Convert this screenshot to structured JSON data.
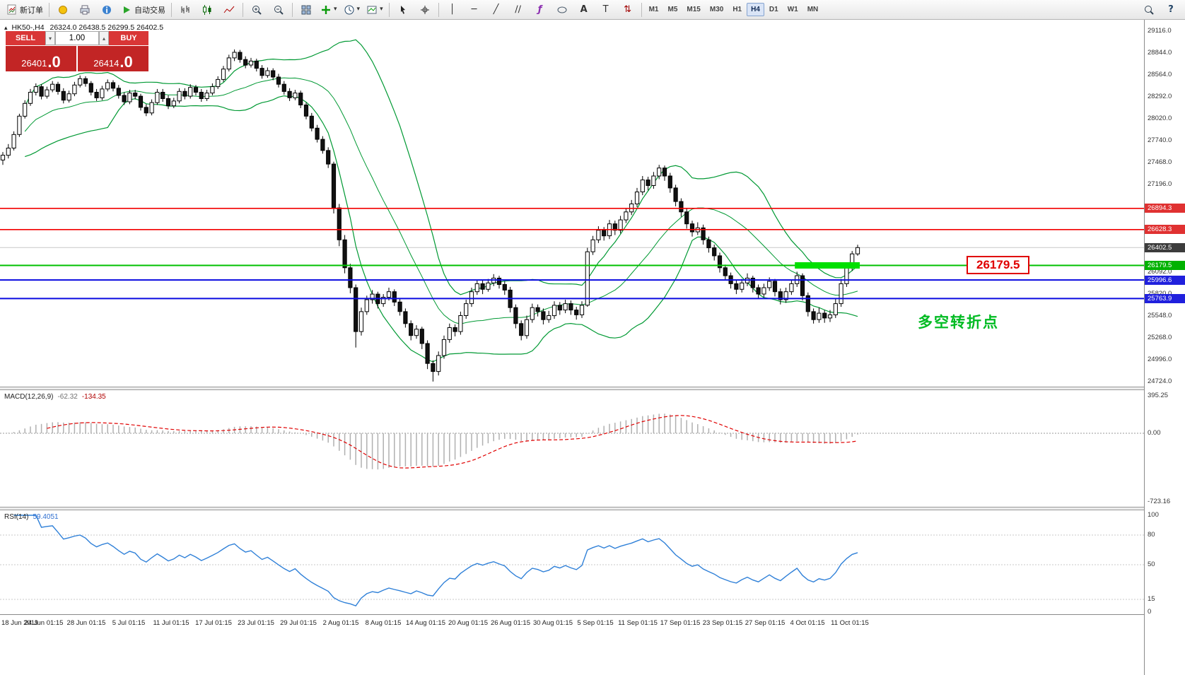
{
  "toolbar": {
    "new_order_label": "新订单",
    "autotrading_label": "自动交易",
    "timeframes": [
      "M1",
      "M5",
      "M15",
      "M30",
      "H1",
      "H4",
      "D1",
      "W1",
      "MN"
    ],
    "active_timeframe": "H4"
  },
  "icons": {
    "symbol_marker": "▴",
    "vline": "│",
    "hline": "─",
    "trendline": "╱",
    "channel": "∕∕",
    "fibo": "ƒ",
    "text": "A",
    "label": "T",
    "arrows": "⇅",
    "caret": "▾",
    "help": "?",
    "spin_up": "▴",
    "spin_down": "▾"
  },
  "header": {
    "symbol_period": "HK50-,H4",
    "ohlc": "26324.0 26438.5 26299.5 26402.5"
  },
  "trade_panel": {
    "sell_label": "SELL",
    "buy_label": "BUY",
    "volume": "1.00",
    "sell_price_main": "26401",
    "sell_price_pip": ".0",
    "buy_price_main": "26414",
    "buy_price_pip": ".0"
  },
  "macd": {
    "label": "MACD(12,26,9)",
    "value_main": "-62.32",
    "value_signal": "-134.35",
    "scale": [
      "395.25",
      "0.00",
      "-723.16"
    ]
  },
  "rsi": {
    "label": "RSI(14)",
    "value": "59.4051",
    "scale": [
      "100",
      "80",
      "50",
      "15",
      "0"
    ]
  },
  "annotations": {
    "callout_text": "26179.5",
    "turning_point_text": "多空转折点"
  },
  "chart_data": {
    "type": "candlestick",
    "symbol": "HK50-",
    "timeframe": "H4",
    "title": "HK50- H4 candlestick chart with Bollinger Bands, horizontal support/resistance lines, MACD and RSI",
    "current_bar": {
      "open": 26324.0,
      "high": 26438.5,
      "low": 26299.5,
      "close": 26402.5
    },
    "y_axis": {
      "min": 24660,
      "max": 29240
    },
    "bands_color": "#009933",
    "current_price_line_color": "#c8c8c8",
    "hlines": [
      {
        "price": 26894.3,
        "color": "#f20000",
        "w": 1.6
      },
      {
        "price": 26628.3,
        "color": "#f20000",
        "w": 1.6
      },
      {
        "price": 26179.5,
        "color": "#00c000",
        "w": 2
      },
      {
        "price": 25996.6,
        "color": "#0a0ae0",
        "w": 2
      },
      {
        "price": 25763.9,
        "color": "#0a0ae0",
        "w": 2
      }
    ],
    "highlight": {
      "price": 26179.5,
      "from": 144,
      "to": 155,
      "color": "#00e000"
    },
    "price_axis": {
      "regular": [
        {
          "text": "29116.0",
          "price": 29116.0
        },
        {
          "text": "28844.0",
          "price": 28844.0
        },
        {
          "text": "28564.0",
          "price": 28564.0
        },
        {
          "text": "28292.0",
          "price": 28292.0
        },
        {
          "text": "28020.0",
          "price": 28020.0
        },
        {
          "text": "27740.0",
          "price": 27740.0
        },
        {
          "text": "27468.0",
          "price": 27468.0
        },
        {
          "text": "27196.0",
          "price": 27196.0
        },
        {
          "text": "26092.0",
          "price": 26092.0
        },
        {
          "text": "25820.0",
          "price": 25820.0
        },
        {
          "text": "25548.0",
          "price": 25548.0
        },
        {
          "text": "25268.0",
          "price": 25268.0
        },
        {
          "text": "24996.0",
          "price": 24996.0
        },
        {
          "text": "24724.0",
          "price": 24724.0
        }
      ],
      "tags": [
        {
          "text": "26894.3",
          "price": 26894.3,
          "bg": "#e03131"
        },
        {
          "text": "26628.3",
          "price": 26628.3,
          "bg": "#e03131"
        },
        {
          "text": "26402.5",
          "price": 26402.5,
          "bg": "#3c3c3c"
        },
        {
          "text": "26179.5",
          "price": 26179.5,
          "bg": "#00b200"
        },
        {
          "text": "25996.6",
          "price": 25996.6,
          "bg": "#2020dd"
        },
        {
          "text": "25763.9",
          "price": 25763.9,
          "bg": "#2020dd"
        }
      ]
    },
    "time_labels": [
      "18 Jun 2019",
      "24 Jun 01:15",
      "28 Jun 01:15",
      "5 Jul 01:15",
      "11 Jul 01:15",
      "17 Jul 01:15",
      "23 Jul 01:15",
      "29 Jul 01:15",
      "2 Aug 01:15",
      "8 Aug 01:15",
      "14 Aug 01:15",
      "20 Aug 01:15",
      "26 Aug 01:15",
      "30 Aug 01:15",
      "5 Sep 01:15",
      "11 Sep 01:15",
      "17 Sep 01:15",
      "23 Sep 01:15",
      "27 Sep 01:15",
      "4 Oct 01:15",
      "11 Oct 01:15"
    ],
    "candles": [
      [
        27500,
        27600,
        27440,
        27560
      ],
      [
        27560,
        27700,
        27520,
        27650
      ],
      [
        27650,
        27860,
        27620,
        27820
      ],
      [
        27820,
        28080,
        27790,
        28050
      ],
      [
        28050,
        28250,
        28020,
        28210
      ],
      [
        28210,
        28390,
        28180,
        28350
      ],
      [
        28350,
        28460,
        28310,
        28420
      ],
      [
        28420,
        28450,
        28260,
        28300
      ],
      [
        28300,
        28420,
        28270,
        28380
      ],
      [
        28380,
        28490,
        28350,
        28450
      ],
      [
        28450,
        28480,
        28320,
        28360
      ],
      [
        28360,
        28400,
        28210,
        28250
      ],
      [
        28250,
        28370,
        28220,
        28330
      ],
      [
        28330,
        28480,
        28300,
        28440
      ],
      [
        28440,
        28560,
        28410,
        28520
      ],
      [
        28520,
        28550,
        28420,
        28460
      ],
      [
        28460,
        28490,
        28310,
        28350
      ],
      [
        28350,
        28390,
        28240,
        28280
      ],
      [
        28280,
        28430,
        28250,
        28390
      ],
      [
        28390,
        28510,
        28360,
        28470
      ],
      [
        28470,
        28500,
        28360,
        28400
      ],
      [
        28400,
        28440,
        28270,
        28310
      ],
      [
        28310,
        28350,
        28190,
        28230
      ],
      [
        28230,
        28380,
        28200,
        28340
      ],
      [
        28340,
        28380,
        28260,
        28300
      ],
      [
        28300,
        28330,
        28120,
        28160
      ],
      [
        28160,
        28200,
        28050,
        28090
      ],
      [
        28090,
        28260,
        28060,
        28220
      ],
      [
        28220,
        28390,
        28190,
        28350
      ],
      [
        28350,
        28390,
        28230,
        28270
      ],
      [
        28270,
        28310,
        28140,
        28180
      ],
      [
        28180,
        28280,
        28150,
        28240
      ],
      [
        28240,
        28400,
        28210,
        28360
      ],
      [
        28360,
        28400,
        28260,
        28300
      ],
      [
        28300,
        28450,
        28270,
        28410
      ],
      [
        28410,
        28440,
        28310,
        28350
      ],
      [
        28350,
        28390,
        28230,
        28270
      ],
      [
        28270,
        28380,
        28240,
        28340
      ],
      [
        28340,
        28460,
        28310,
        28420
      ],
      [
        28420,
        28550,
        28390,
        28510
      ],
      [
        28510,
        28680,
        28480,
        28640
      ],
      [
        28640,
        28820,
        28610,
        28780
      ],
      [
        28780,
        28886,
        28740,
        28850
      ],
      [
        28850,
        28880,
        28720,
        28760
      ],
      [
        28760,
        28800,
        28650,
        28690
      ],
      [
        28690,
        28780,
        28660,
        28740
      ],
      [
        28740,
        28770,
        28610,
        28650
      ],
      [
        28650,
        28690,
        28520,
        28560
      ],
      [
        28560,
        28660,
        28530,
        28620
      ],
      [
        28620,
        28650,
        28500,
        28540
      ],
      [
        28540,
        28580,
        28410,
        28450
      ],
      [
        28450,
        28490,
        28320,
        28360
      ],
      [
        28360,
        28400,
        28240,
        28280
      ],
      [
        28280,
        28380,
        28250,
        28340
      ],
      [
        28340,
        28370,
        28150,
        28190
      ],
      [
        28190,
        28220,
        28010,
        28050
      ],
      [
        28050,
        28090,
        27860,
        27900
      ],
      [
        27900,
        27940,
        27720,
        27760
      ],
      [
        27760,
        27800,
        27580,
        27620
      ],
      [
        27620,
        27660,
        27400,
        27450
      ],
      [
        27450,
        27480,
        26830,
        26900
      ],
      [
        26900,
        26950,
        26420,
        26500
      ],
      [
        26500,
        26560,
        26080,
        26150
      ],
      [
        26150,
        26200,
        25830,
        25900
      ],
      [
        25900,
        25940,
        25150,
        25350
      ],
      [
        25350,
        25650,
        25300,
        25600
      ],
      [
        25600,
        25800,
        25560,
        25750
      ],
      [
        25750,
        25870,
        25700,
        25820
      ],
      [
        25820,
        25850,
        25640,
        25700
      ],
      [
        25700,
        25820,
        25660,
        25780
      ],
      [
        25780,
        25900,
        25740,
        25850
      ],
      [
        25850,
        25880,
        25670,
        25720
      ],
      [
        25720,
        25760,
        25550,
        25600
      ],
      [
        25600,
        25640,
        25400,
        25450
      ],
      [
        25450,
        25490,
        25240,
        25300
      ],
      [
        25300,
        25430,
        25260,
        25380
      ],
      [
        25380,
        25410,
        25130,
        25200
      ],
      [
        25200,
        25240,
        24880,
        24950
      ],
      [
        24950,
        24990,
        24724,
        24850
      ],
      [
        24850,
        25100,
        24800,
        25050
      ],
      [
        25050,
        25300,
        25010,
        25250
      ],
      [
        25250,
        25450,
        25210,
        25400
      ],
      [
        25400,
        25440,
        25290,
        25350
      ],
      [
        25350,
        25600,
        25310,
        25550
      ],
      [
        25550,
        25750,
        25510,
        25700
      ],
      [
        25700,
        25900,
        25660,
        25850
      ],
      [
        25850,
        26000,
        25810,
        25950
      ],
      [
        25950,
        25990,
        25820,
        25880
      ],
      [
        25880,
        26010,
        25850,
        25960
      ],
      [
        25960,
        26070,
        25920,
        26020
      ],
      [
        26020,
        26050,
        25890,
        25940
      ],
      [
        25940,
        25980,
        25810,
        25870
      ],
      [
        25870,
        25910,
        25590,
        25650
      ],
      [
        25650,
        25690,
        25390,
        25450
      ],
      [
        25450,
        25490,
        25240,
        25300
      ],
      [
        25300,
        25550,
        25260,
        25500
      ],
      [
        25500,
        25700,
        25460,
        25650
      ],
      [
        25650,
        25690,
        25540,
        25600
      ],
      [
        25600,
        25640,
        25440,
        25500
      ],
      [
        25500,
        25610,
        25460,
        25550
      ],
      [
        25550,
        25730,
        25510,
        25680
      ],
      [
        25680,
        25720,
        25560,
        25620
      ],
      [
        25620,
        25750,
        25580,
        25700
      ],
      [
        25700,
        25740,
        25560,
        25620
      ],
      [
        25620,
        25660,
        25500,
        25560
      ],
      [
        25560,
        25730,
        25520,
        25680
      ],
      [
        25680,
        26400,
        25660,
        26350
      ],
      [
        26350,
        26550,
        26310,
        26500
      ],
      [
        26500,
        26670,
        26460,
        26620
      ],
      [
        26620,
        26660,
        26490,
        26550
      ],
      [
        26550,
        26750,
        26510,
        26700
      ],
      [
        26700,
        26740,
        26560,
        26620
      ],
      [
        26620,
        26800,
        26580,
        26750
      ],
      [
        26750,
        26900,
        26710,
        26850
      ],
      [
        26850,
        27000,
        26810,
        26950
      ],
      [
        26950,
        27150,
        26910,
        27100
      ],
      [
        27100,
        27300,
        27060,
        27250
      ],
      [
        27250,
        27290,
        27120,
        27180
      ],
      [
        27180,
        27350,
        27140,
        27300
      ],
      [
        27300,
        27440,
        27260,
        27400
      ],
      [
        27400,
        27430,
        27240,
        27300
      ],
      [
        27300,
        27340,
        27090,
        27150
      ],
      [
        27150,
        27190,
        26920,
        26980
      ],
      [
        26980,
        27020,
        26790,
        26850
      ],
      [
        26850,
        26890,
        26640,
        26700
      ],
      [
        26700,
        26740,
        26540,
        26600
      ],
      [
        26600,
        26720,
        26560,
        26650
      ],
      [
        26650,
        26690,
        26440,
        26500
      ],
      [
        26500,
        26540,
        26340,
        26400
      ],
      [
        26400,
        26440,
        26240,
        26300
      ],
      [
        26300,
        26340,
        26090,
        26150
      ],
      [
        26150,
        26190,
        25990,
        26050
      ],
      [
        26050,
        26090,
        25890,
        25950
      ],
      [
        25950,
        25990,
        25820,
        25880
      ],
      [
        25880,
        26010,
        25840,
        25960
      ],
      [
        25960,
        26080,
        25920,
        26020
      ],
      [
        26020,
        26050,
        25840,
        25900
      ],
      [
        25900,
        25940,
        25760,
        25820
      ],
      [
        25820,
        25950,
        25780,
        25900
      ],
      [
        25900,
        26030,
        25860,
        25980
      ],
      [
        25980,
        26010,
        25790,
        25850
      ],
      [
        25850,
        25890,
        25690,
        25750
      ],
      [
        25750,
        25900,
        25710,
        25850
      ],
      [
        25850,
        26000,
        25810,
        25950
      ],
      [
        25950,
        26100,
        25910,
        26050
      ],
      [
        26050,
        26080,
        25740,
        25800
      ],
      [
        25800,
        25840,
        25540,
        25600
      ],
      [
        25600,
        25640,
        25450,
        25500
      ],
      [
        25500,
        25650,
        25460,
        25580
      ],
      [
        25580,
        25620,
        25460,
        25520
      ],
      [
        25520,
        25620,
        25470,
        25560
      ],
      [
        25560,
        25760,
        25520,
        25700
      ],
      [
        25700,
        26010,
        25660,
        25950
      ],
      [
        25950,
        26200,
        25910,
        26150
      ],
      [
        26150,
        26360,
        26110,
        26324
      ],
      [
        26324,
        26438.5,
        26299.5,
        26402.5
      ]
    ],
    "indicators": [
      {
        "type": "macd",
        "label": "MACD(12,26,9)",
        "main_value": -62.32,
        "signal_value": -134.35,
        "scale": [
          395.25,
          0.0,
          -723.16
        ]
      },
      {
        "type": "rsi",
        "label": "RSI(14)",
        "value": 59.4051,
        "levels": [
          80,
          50,
          15
        ],
        "scale": [
          100,
          80,
          50,
          15,
          0
        ]
      }
    ]
  }
}
